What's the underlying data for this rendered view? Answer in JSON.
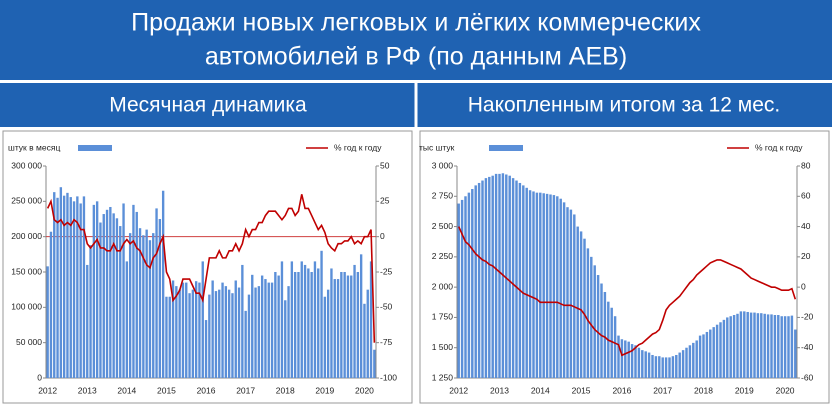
{
  "header": {
    "title": [
      "Продажи новых легковых и лёгких коммерческих",
      "автомобилей в РФ (по данным АЕВ)"
    ]
  },
  "chart_data": [
    {
      "type": "combo",
      "title": "Месячная динамика",
      "categories": [
        "2012",
        null,
        null,
        null,
        null,
        null,
        null,
        null,
        null,
        null,
        null,
        null,
        "2013",
        null,
        null,
        null,
        null,
        null,
        null,
        null,
        null,
        null,
        null,
        null,
        "2014",
        null,
        null,
        null,
        null,
        null,
        null,
        null,
        null,
        null,
        null,
        null,
        "2015",
        null,
        null,
        null,
        null,
        null,
        null,
        null,
        null,
        null,
        null,
        null,
        "2016",
        null,
        null,
        null,
        null,
        null,
        null,
        null,
        null,
        null,
        null,
        null,
        "2017",
        null,
        null,
        null,
        null,
        null,
        null,
        null,
        null,
        null,
        null,
        null,
        "2018",
        null,
        null,
        null,
        null,
        null,
        null,
        null,
        null,
        null,
        null,
        null,
        "2019",
        null,
        null,
        null,
        null,
        null,
        null,
        null,
        null,
        null,
        null,
        null,
        "2020",
        null,
        null,
        null
      ],
      "series": [
        {
          "name": "штук в месяц",
          "color": "#5b8fd8",
          "values": [
            158000,
            207000,
            263000,
            255000,
            270000,
            258000,
            262000,
            256000,
            250000,
            257000,
            247000,
            257000,
            160000,
            188000,
            245000,
            250000,
            220000,
            232000,
            238000,
            242000,
            233000,
            226000,
            215000,
            247000,
            165000,
            205000,
            245000,
            235000,
            212000,
            202000,
            210000,
            195000,
            205000,
            240000,
            225000,
            265000,
            115000,
            115000,
            138000,
            130000,
            125000,
            135000,
            135000,
            120000,
            125000,
            137000,
            135000,
            165000,
            82000,
            118000,
            138000,
            123000,
            125000,
            135000,
            130000,
            125000,
            120000,
            138000,
            128000,
            160000,
            95000,
            118000,
            146000,
            128000,
            130000,
            145000,
            140000,
            135000,
            135000,
            150000,
            145000,
            165000,
            110000,
            130000,
            165000,
            150000,
            150000,
            165000,
            160000,
            155000,
            150000,
            165000,
            155000,
            180000,
            115000,
            125000,
            155000,
            140000,
            140000,
            150000,
            150000,
            145000,
            145000,
            160000,
            150000,
            175000,
            105000,
            125000,
            165000,
            40000
          ]
        },
        {
          "name": "% год к году",
          "color": "#c00000",
          "axis": "y2",
          "values": [
            20,
            25,
            12,
            10,
            12,
            8,
            10,
            8,
            12,
            10,
            5,
            5,
            -5,
            -8,
            -5,
            -2,
            -8,
            -8,
            -10,
            -10,
            -5,
            -10,
            -10,
            -5,
            -2,
            -5,
            -3,
            -8,
            -10,
            -15,
            -20,
            -22,
            -15,
            -12,
            -5,
            0,
            -25,
            -30,
            -45,
            -42,
            -38,
            -30,
            -30,
            -30,
            -35,
            -40,
            -40,
            -45,
            -30,
            -15,
            -15,
            -15,
            -10,
            -15,
            -15,
            -10,
            -10,
            -5,
            -10,
            -5,
            5,
            0,
            5,
            5,
            10,
            10,
            15,
            18,
            18,
            18,
            15,
            12,
            15,
            20,
            20,
            15,
            18,
            30,
            20,
            20,
            15,
            10,
            5,
            8,
            3,
            -5,
            -8,
            -10,
            -5,
            -5,
            -3,
            -3,
            0,
            -5,
            -3,
            -5,
            0,
            0,
            5,
            -75
          ]
        }
      ],
      "ylim": [
        0,
        300000
      ],
      "yticks": [
        0,
        {
          "value": 50000,
          "label": "50 000"
        },
        {
          "value": 100000,
          "label": "100 000"
        },
        {
          "value": 150000,
          "label": "150 000"
        },
        {
          "value": 200000,
          "label": "200 000"
        },
        {
          "value": 250000,
          "label": "250 000"
        },
        {
          "value": 300000,
          "label": "300 000"
        }
      ],
      "y2lim": [
        -100,
        50
      ],
      "y2ticks": [
        -100,
        -75,
        -50,
        -25,
        0,
        25,
        50
      ],
      "y2_refline": 0
    },
    {
      "type": "combo",
      "title": "Накопленным итогом за 12 мес.",
      "categories": [
        "2012",
        null,
        null,
        null,
        null,
        null,
        null,
        null,
        null,
        null,
        null,
        null,
        "2013",
        null,
        null,
        null,
        null,
        null,
        null,
        null,
        null,
        null,
        null,
        null,
        "2014",
        null,
        null,
        null,
        null,
        null,
        null,
        null,
        null,
        null,
        null,
        null,
        "2015",
        null,
        null,
        null,
        null,
        null,
        null,
        null,
        null,
        null,
        null,
        null,
        "2016",
        null,
        null,
        null,
        null,
        null,
        null,
        null,
        null,
        null,
        null,
        null,
        "2017",
        null,
        null,
        null,
        null,
        null,
        null,
        null,
        null,
        null,
        null,
        null,
        "2018",
        null,
        null,
        null,
        null,
        null,
        null,
        null,
        null,
        null,
        null,
        null,
        "2019",
        null,
        null,
        null,
        null,
        null,
        null,
        null,
        null,
        null,
        null,
        null,
        "2020",
        null,
        null,
        null
      ],
      "series": [
        {
          "name": "тыс штук",
          "color": "#5b8fd8",
          "values": [
            2690,
            2720,
            2750,
            2780,
            2810,
            2840,
            2860,
            2880,
            2900,
            2910,
            2920,
            2935,
            2935,
            2940,
            2930,
            2920,
            2900,
            2880,
            2860,
            2840,
            2820,
            2800,
            2790,
            2780,
            2780,
            2775,
            2770,
            2765,
            2760,
            2750,
            2730,
            2700,
            2660,
            2640,
            2600,
            2500,
            2460,
            2400,
            2320,
            2250,
            2180,
            2100,
            2030,
            1960,
            1880,
            1830,
            1760,
            1600,
            1570,
            1560,
            1550,
            1530,
            1520,
            1500,
            1480,
            1470,
            1460,
            1440,
            1430,
            1430,
            1420,
            1420,
            1420,
            1430,
            1440,
            1460,
            1480,
            1500,
            1520,
            1540,
            1560,
            1600,
            1610,
            1630,
            1650,
            1670,
            1690,
            1710,
            1730,
            1750,
            1760,
            1770,
            1780,
            1800,
            1800,
            1795,
            1790,
            1790,
            1785,
            1785,
            1780,
            1775,
            1775,
            1770,
            1770,
            1760,
            1760,
            1760,
            1765,
            1650
          ]
        },
        {
          "name": "% год к году",
          "color": "#c00000",
          "axis": "y2",
          "values": [
            40,
            35,
            30,
            28,
            25,
            22,
            20,
            18,
            17,
            15,
            14,
            12,
            10,
            8,
            6,
            4,
            2,
            0,
            -2,
            -4,
            -5,
            -6,
            -7,
            -8,
            -10,
            -10,
            -10,
            -10,
            -10,
            -10,
            -11,
            -12,
            -12,
            -12,
            -13,
            -14,
            -15,
            -18,
            -22,
            -25,
            -28,
            -30,
            -32,
            -33,
            -35,
            -36,
            -37,
            -38,
            -45,
            -44,
            -43,
            -42,
            -40,
            -38,
            -37,
            -35,
            -33,
            -31,
            -30,
            -28,
            -22,
            -15,
            -12,
            -10,
            -8,
            -6,
            -3,
            0,
            3,
            5,
            8,
            10,
            12,
            14,
            16,
            17,
            18,
            18,
            17,
            16,
            15,
            14,
            13,
            12,
            10,
            8,
            6,
            5,
            4,
            3,
            2,
            1,
            0,
            0,
            -1,
            -2,
            -2,
            -2,
            -1,
            -8
          ]
        }
      ],
      "ylim": [
        1250,
        3000
      ],
      "yticks": [
        {
          "value": 1250,
          "label": "1 250"
        },
        {
          "value": 1500,
          "label": "1 500"
        },
        {
          "value": 1750,
          "label": "1 750"
        },
        {
          "value": 2000,
          "label": "2 000"
        },
        {
          "value": 2250,
          "label": "2 250"
        },
        {
          "value": 2500,
          "label": "2 500"
        },
        {
          "value": 2750,
          "label": "2 750"
        },
        {
          "value": 3000,
          "label": "3 000"
        }
      ],
      "y2lim": [
        -60,
        80
      ],
      "y2ticks": [
        -60,
        -40,
        -20,
        0,
        20,
        40,
        60,
        80
      ]
    }
  ]
}
